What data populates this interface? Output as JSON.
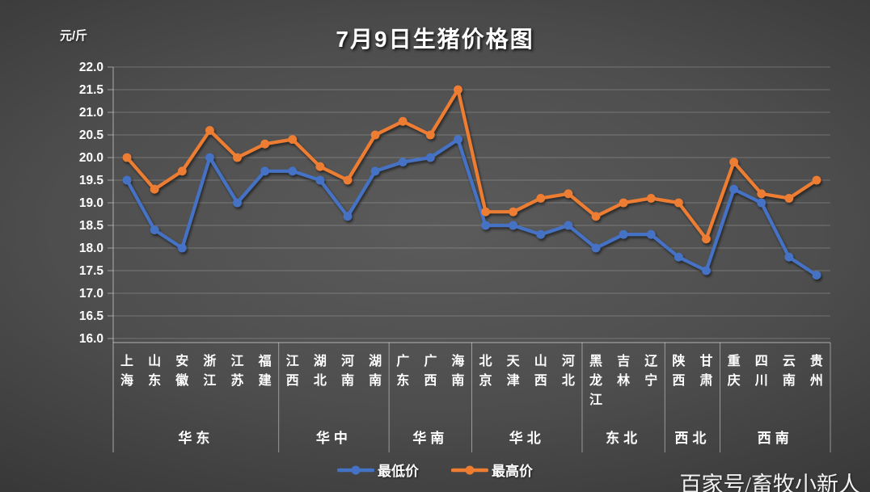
{
  "title": "7月9日生猪价格图",
  "y_axis_unit": "元/斤",
  "watermark": "百家号/畜牧小新人",
  "legend": {
    "min_label": "最低价",
    "max_label": "最高价"
  },
  "colors": {
    "min_series": "#4472C4",
    "max_series": "#ED7D31",
    "text": "#ffffff",
    "gridline": "rgba(255,255,255,0.22)",
    "axis_line": "rgba(255,255,255,0.45)"
  },
  "chart_data": {
    "type": "line",
    "title": "7月9日生猪价格图",
    "ylabel": "元/斤",
    "xlabel": "",
    "ylim": [
      16.0,
      22.0
    ],
    "ytick_step": 0.5,
    "grid": true,
    "legend_position": "bottom",
    "categories": [
      "上海",
      "山东",
      "安徽",
      "浙江",
      "江苏",
      "福建",
      "江西",
      "湖北",
      "河南",
      "湖南",
      "广东",
      "广西",
      "海南",
      "北京",
      "天津",
      "山西",
      "河北",
      "黑龙江",
      "吉林",
      "辽宁",
      "陕西",
      "甘肃",
      "重庆",
      "四川",
      "云南",
      "贵州"
    ],
    "category_groups": [
      {
        "label": "华东",
        "start": 0,
        "end": 5
      },
      {
        "label": "华中",
        "start": 6,
        "end": 9
      },
      {
        "label": "华南",
        "start": 10,
        "end": 12
      },
      {
        "label": "华北",
        "start": 13,
        "end": 16
      },
      {
        "label": "东北",
        "start": 17,
        "end": 19
      },
      {
        "label": "西北",
        "start": 20,
        "end": 21
      },
      {
        "label": "西南",
        "start": 22,
        "end": 25
      }
    ],
    "series": [
      {
        "name": "最低价",
        "color": "#4472C4",
        "values": [
          19.5,
          18.4,
          18.0,
          20.0,
          19.0,
          19.7,
          19.7,
          19.5,
          18.7,
          19.7,
          19.9,
          20.0,
          20.4,
          18.5,
          18.5,
          18.3,
          18.5,
          18.0,
          18.3,
          18.3,
          17.8,
          17.5,
          19.3,
          19.0,
          17.8,
          17.4
        ]
      },
      {
        "name": "最高价",
        "color": "#ED7D31",
        "values": [
          20.0,
          19.3,
          19.7,
          20.6,
          20.0,
          20.3,
          20.4,
          19.8,
          19.5,
          20.5,
          20.8,
          20.5,
          21.5,
          18.8,
          18.8,
          19.1,
          19.2,
          18.7,
          19.0,
          19.1,
          19.0,
          18.2,
          19.9,
          19.2,
          19.1,
          19.5
        ]
      }
    ]
  }
}
